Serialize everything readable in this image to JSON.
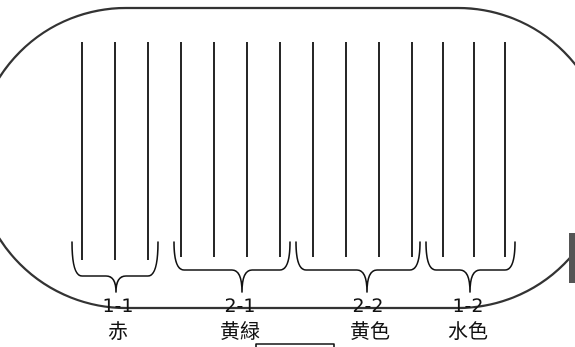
{
  "groups": [
    {
      "code": "1-1",
      "color": "赤",
      "line_count": 3
    },
    {
      "code": "2-1",
      "color": "黄緑",
      "line_count": 4
    },
    {
      "code": "2-2",
      "color": "黄色",
      "line_count": 4
    },
    {
      "code": "1-2",
      "color": "水色",
      "line_count": 3
    }
  ]
}
